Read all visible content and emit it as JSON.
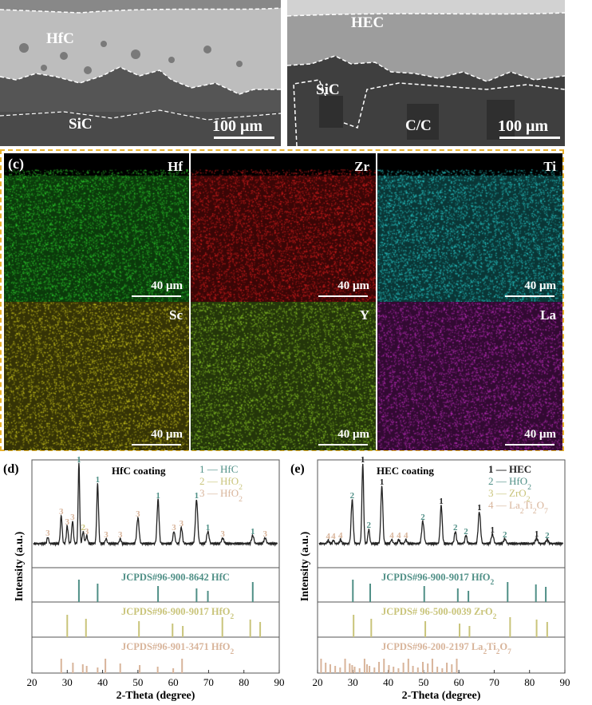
{
  "sem_left": {
    "label_top": "HfC",
    "label_bottom": "SiC",
    "scale": "100 μm"
  },
  "sem_right": {
    "label_top": "HEC",
    "label_mid": "SiC",
    "label_bottom": "C/C",
    "scale": "100 μm"
  },
  "eds": {
    "panel_label": "(c)",
    "maps": [
      {
        "element": "Hf",
        "scale": "40 μm",
        "color": "#2fd12f",
        "base": "#0b3a0b"
      },
      {
        "element": "Zr",
        "scale": "40 μm",
        "color": "#e02020",
        "base": "#3a0606"
      },
      {
        "element": "Ti",
        "scale": "40 μm",
        "color": "#2ad4d4",
        "base": "#0a3636"
      },
      {
        "element": "Sc",
        "scale": "40 μm",
        "color": "#d9d420",
        "base": "#353306"
      },
      {
        "element": "Y",
        "scale": "40 μm",
        "color": "#94d42a",
        "base": "#24360a"
      },
      {
        "element": "La",
        "scale": "40 μm",
        "color": "#c630c6",
        "base": "#320a32"
      }
    ]
  },
  "chart_d": {
    "panel_label": "(d)",
    "coating_label": "HfC coating",
    "legend": [
      {
        "num": "1",
        "phase": "HfC",
        "color": "#4f8f86"
      },
      {
        "num": "2",
        "phase": "HfO2",
        "color": "#c9c47a"
      },
      {
        "num": "3",
        "phase": "HfO2",
        "color": "#d8b49a"
      }
    ],
    "refs": [
      {
        "label": "JCPDS#96-900-8642  HfC",
        "color": "#4f8f86"
      },
      {
        "label": "JCPDS#96-900-9017  HfO2",
        "color": "#c9c47a"
      },
      {
        "label": "JCPDS#96-901-3471  HfO2",
        "color": "#d8b49a"
      }
    ],
    "ylabel": "Intensity (a.u.)",
    "xlabel": "2-Theta (degree)",
    "xticks": [
      "20",
      "30",
      "40",
      "50",
      "60",
      "70",
      "80",
      "90"
    ]
  },
  "chart_e": {
    "panel_label": "(e)",
    "coating_label": "HEC coating",
    "legend": [
      {
        "num": "1",
        "phase": "HEC",
        "color": "#222222"
      },
      {
        "num": "2",
        "phase": "HfO2",
        "color": "#4f8f86"
      },
      {
        "num": "3",
        "phase": "ZrO2",
        "color": "#c9c47a"
      },
      {
        "num": "4",
        "phase": "La2Ti2O7",
        "color": "#d8b49a"
      }
    ],
    "refs": [
      {
        "label": "JCPDS#96-900-9017  HfO2",
        "color": "#4f8f86"
      },
      {
        "label": "JCPDS# 96-500-0039 ZrO2",
        "color": "#c9c47a"
      },
      {
        "label": "JCPDS#96-200-2197 La2Ti2O7",
        "color": "#d8b49a"
      }
    ],
    "ylabel": "Intensity (a.u.)",
    "xlabel": "2-Theta (degree)",
    "xticks": [
      "20",
      "30",
      "40",
      "50",
      "60",
      "70",
      "80",
      "90"
    ]
  },
  "chart_data": [
    {
      "type": "line",
      "title": "HfC coating",
      "xlabel": "2-Theta (degree)",
      "ylabel": "Intensity (a.u.)",
      "xlim": [
        20,
        90
      ],
      "pattern_peaks": [
        {
          "x": 24.5,
          "h": 0.08,
          "w": 0.35,
          "tag": "3"
        },
        {
          "x": 28.3,
          "h": 0.35,
          "w": 0.35,
          "tag": "3"
        },
        {
          "x": 30.0,
          "h": 0.22,
          "w": 0.35,
          "tag": "3"
        },
        {
          "x": 31.5,
          "h": 0.28,
          "w": 0.35,
          "tag": "3"
        },
        {
          "x": 33.3,
          "h": 1.0,
          "w": 0.3,
          "tag": "1"
        },
        {
          "x": 34.5,
          "h": 0.15,
          "w": 0.35,
          "tag": "2"
        },
        {
          "x": 35.5,
          "h": 0.1,
          "w": 0.35,
          "tag": "3"
        },
        {
          "x": 38.6,
          "h": 0.75,
          "w": 0.35,
          "tag": "1"
        },
        {
          "x": 41.0,
          "h": 0.06,
          "w": 0.35,
          "tag": "3"
        },
        {
          "x": 45.0,
          "h": 0.06,
          "w": 0.35,
          "tag": "3"
        },
        {
          "x": 50.0,
          "h": 0.32,
          "w": 0.45,
          "tag": "3"
        },
        {
          "x": 55.7,
          "h": 0.55,
          "w": 0.4,
          "tag": "1"
        },
        {
          "x": 60.2,
          "h": 0.15,
          "w": 0.4,
          "tag": "3"
        },
        {
          "x": 62.3,
          "h": 0.2,
          "w": 0.4,
          "tag": "3"
        },
        {
          "x": 66.6,
          "h": 0.55,
          "w": 0.45,
          "tag": "1"
        },
        {
          "x": 69.8,
          "h": 0.15,
          "w": 0.45,
          "tag": "1"
        },
        {
          "x": 74.0,
          "h": 0.07,
          "w": 0.45,
          "tag": "3"
        },
        {
          "x": 82.5,
          "h": 0.1,
          "w": 0.45,
          "tag": "1"
        },
        {
          "x": 86.0,
          "h": 0.07,
          "w": 0.45,
          "tag": "3"
        }
      ],
      "ref1": [
        33.3,
        38.6,
        55.7,
        66.6,
        69.8,
        82.5
      ],
      "ref2": [
        30.0,
        35.3,
        50.3,
        59.8,
        62.7,
        73.9,
        81.8,
        84.6
      ],
      "ref3": [
        28.3,
        31.6,
        34.4,
        35.5,
        38.6,
        40.8,
        45.0,
        50.5,
        55.6,
        60.0,
        62.5
      ]
    },
    {
      "type": "line",
      "title": "HEC coating",
      "xlabel": "2-Theta (degree)",
      "ylabel": "Intensity (a.u.)",
      "xlim": [
        20,
        90
      ],
      "pattern_peaks": [
        {
          "x": 23.0,
          "h": 0.04,
          "w": 0.35,
          "tag": "4"
        },
        {
          "x": 24.5,
          "h": 0.04,
          "w": 0.35,
          "tag": "4"
        },
        {
          "x": 26.5,
          "h": 0.05,
          "w": 0.35,
          "tag": "4"
        },
        {
          "x": 29.8,
          "h": 0.55,
          "w": 0.4,
          "tag": "2"
        },
        {
          "x": 32.8,
          "h": 1.0,
          "w": 0.35,
          "tag": "1"
        },
        {
          "x": 34.5,
          "h": 0.18,
          "w": 0.35,
          "tag": "2"
        },
        {
          "x": 38.2,
          "h": 0.72,
          "w": 0.4,
          "tag": "1"
        },
        {
          "x": 41.0,
          "h": 0.05,
          "w": 0.35,
          "tag": "4"
        },
        {
          "x": 43.0,
          "h": 0.05,
          "w": 0.35,
          "tag": "4"
        },
        {
          "x": 45.0,
          "h": 0.05,
          "w": 0.35,
          "tag": "4"
        },
        {
          "x": 49.8,
          "h": 0.28,
          "w": 0.45,
          "tag": "2"
        },
        {
          "x": 55.0,
          "h": 0.48,
          "w": 0.4,
          "tag": "1"
        },
        {
          "x": 59.0,
          "h": 0.15,
          "w": 0.4,
          "tag": "2"
        },
        {
          "x": 62.0,
          "h": 0.1,
          "w": 0.4,
          "tag": "2"
        },
        {
          "x": 65.8,
          "h": 0.4,
          "w": 0.45,
          "tag": "1"
        },
        {
          "x": 69.5,
          "h": 0.12,
          "w": 0.45,
          "tag": "1"
        },
        {
          "x": 73.0,
          "h": 0.06,
          "w": 0.45,
          "tag": "2"
        },
        {
          "x": 82.0,
          "h": 0.07,
          "w": 0.45,
          "tag": "1"
        },
        {
          "x": 85.0,
          "h": 0.05,
          "w": 0.45,
          "tag": "2"
        }
      ],
      "ref1": [
        30.0,
        34.9,
        50.2,
        59.7,
        62.7,
        73.8,
        81.8,
        84.6
      ],
      "ref2": [
        30.2,
        35.2,
        50.5,
        60.2,
        63.0,
        74.5,
        82.0,
        85.0
      ],
      "ref3": [
        21.0,
        22.3,
        23.6,
        25.0,
        26.4,
        27.8,
        29.1,
        29.8,
        30.5,
        31.9,
        33.3,
        34.0,
        34.7,
        36.1,
        37.4,
        38.8,
        40.2,
        41.5,
        42.9,
        44.3,
        45.7,
        47.0,
        48.4,
        49.8,
        51.2,
        52.5,
        53.9,
        55.3,
        56.6,
        58.0,
        59.4
      ]
    }
  ]
}
